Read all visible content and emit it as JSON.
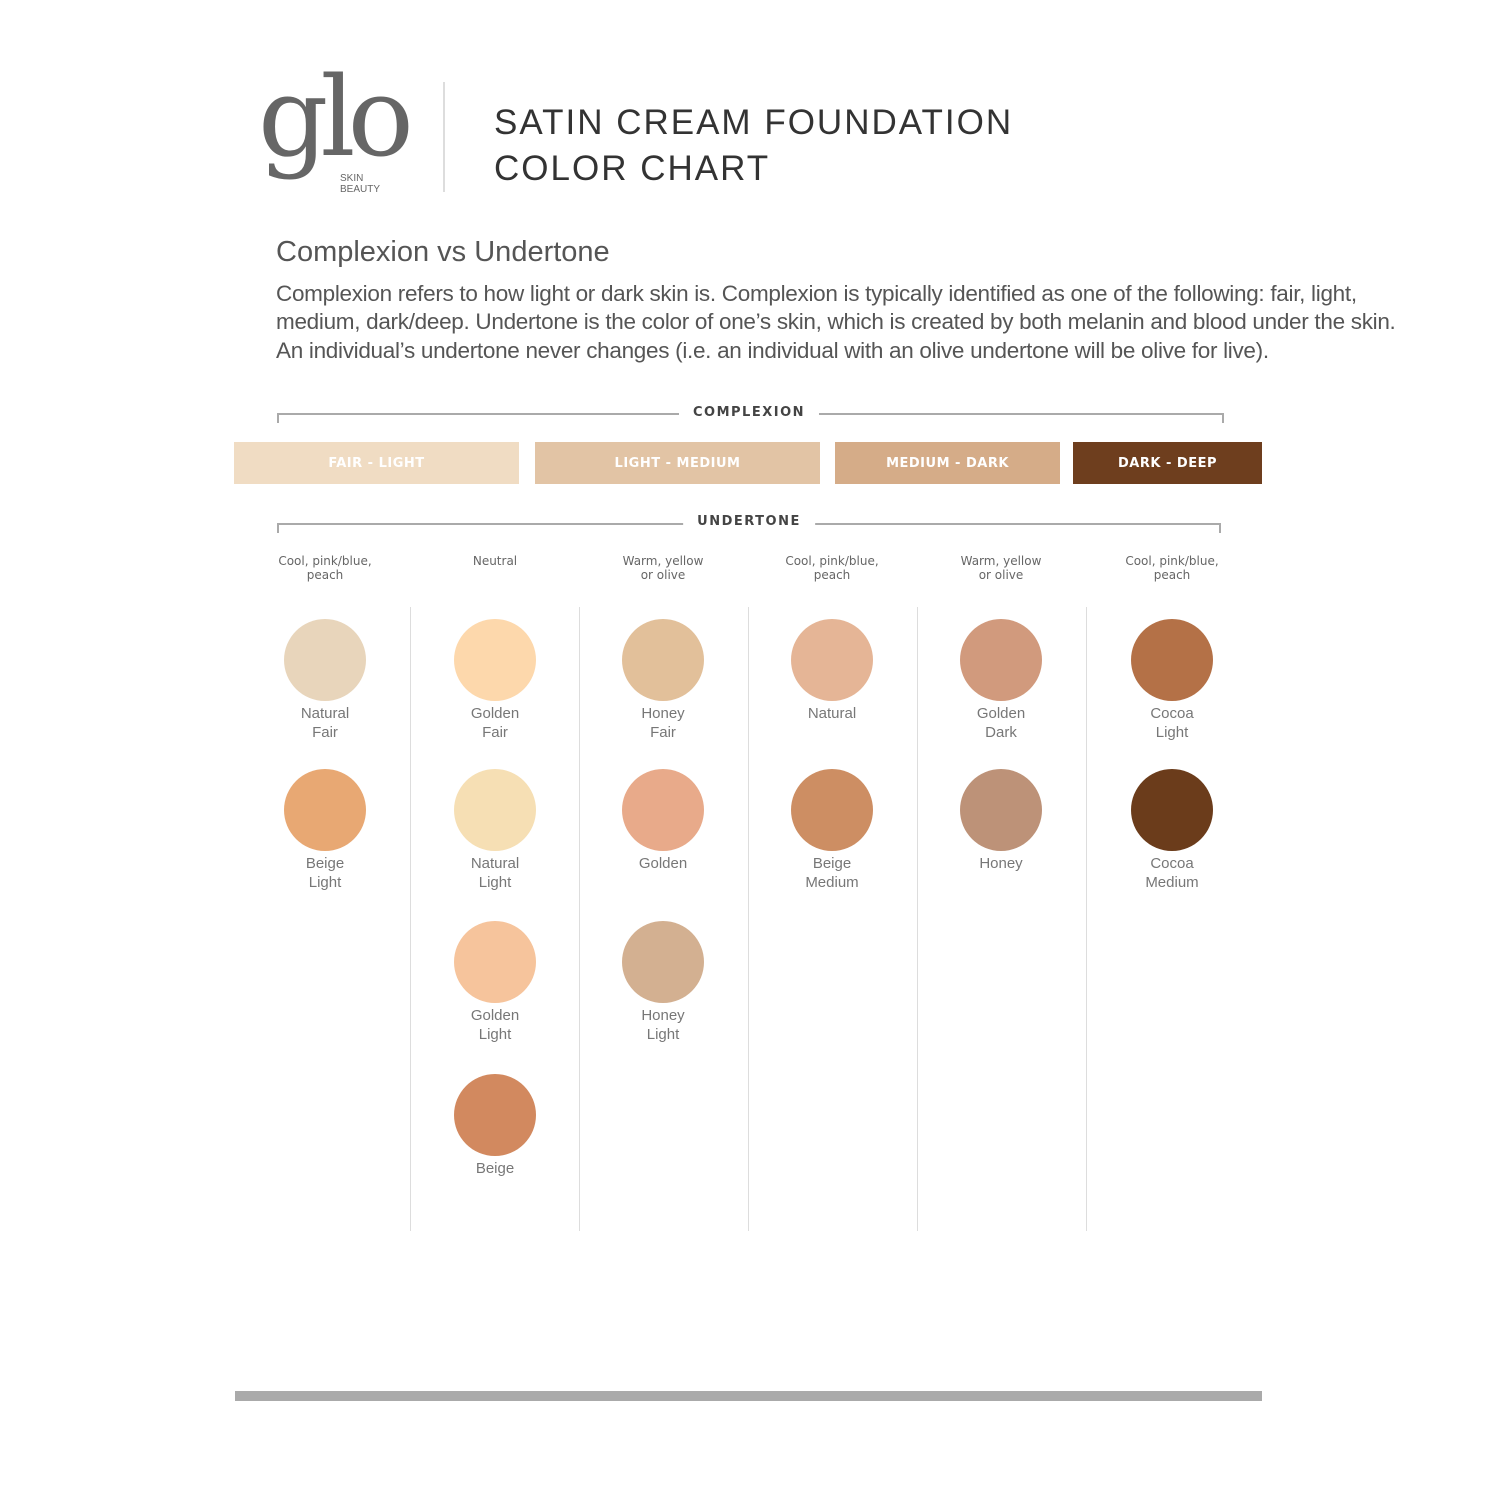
{
  "logo": {
    "text": "glo",
    "sub1": "SKIN",
    "sub2": "BEAUTY"
  },
  "title": {
    "line1": "SATIN CREAM FOUNDATION",
    "line2": "COLOR CHART"
  },
  "heading": "Complexion vs Undertone",
  "paragraph": "Complexion refers to how light or dark skin is. Complexion is typically identified as one of the following: fair, light, medium, dark/deep. Undertone is the color of one’s skin, which is created by both melanin and blood under the skin. An individual’s undertone never changes (i.e. an individual with an olive undertone will be olive for live).",
  "complexion_label": "COMPLEXION",
  "undertone_label": "UNDERTONE",
  "complexions": [
    {
      "label": "FAIR - LIGHT",
      "color": "#f0dcc3"
    },
    {
      "label": "LIGHT - MEDIUM",
      "color": "#e2c4a5"
    },
    {
      "label": "MEDIUM - DARK",
      "color": "#d5ac88"
    },
    {
      "label": "DARK - DEEP",
      "color": "#6e3e1e"
    }
  ],
  "columns": [
    {
      "undertone": "Cool, pink/blue, peach",
      "shades": [
        {
          "name": "Natural Fair",
          "color": "#e8d5bb"
        },
        {
          "name": "Beige Light",
          "color": "#e8a873"
        }
      ]
    },
    {
      "undertone": "Neutral",
      "shades": [
        {
          "name": "Golden Fair",
          "color": "#fdd8ac"
        },
        {
          "name": "Natural Light",
          "color": "#f6dfb4"
        },
        {
          "name": "Golden Light",
          "color": "#f6c49c"
        },
        {
          "name": "Beige",
          "color": "#d2895f"
        }
      ]
    },
    {
      "undertone": "Warm, yellow or olive",
      "shades": [
        {
          "name": "Honey Fair",
          "color": "#e2c09a"
        },
        {
          "name": "Golden",
          "color": "#e8aa8a"
        },
        {
          "name": "Honey Light",
          "color": "#d3b091"
        }
      ]
    },
    {
      "undertone": "Cool, pink/blue, peach",
      "shades": [
        {
          "name": "Natural",
          "color": "#e5b596"
        },
        {
          "name": "Beige Medium",
          "color": "#cd8e63"
        }
      ]
    },
    {
      "undertone": "Warm, yellow or olive",
      "shades": [
        {
          "name": "Golden Dark",
          "color": "#d19a7d"
        },
        {
          "name": "Honey",
          "color": "#bd9278"
        }
      ]
    },
    {
      "undertone": "Cool, pink/blue, peach",
      "shades": [
        {
          "name": "Cocoa Light",
          "color": "#b47147"
        },
        {
          "name": "Cocoa Medium",
          "color": "#6b3c1b"
        }
      ]
    }
  ]
}
